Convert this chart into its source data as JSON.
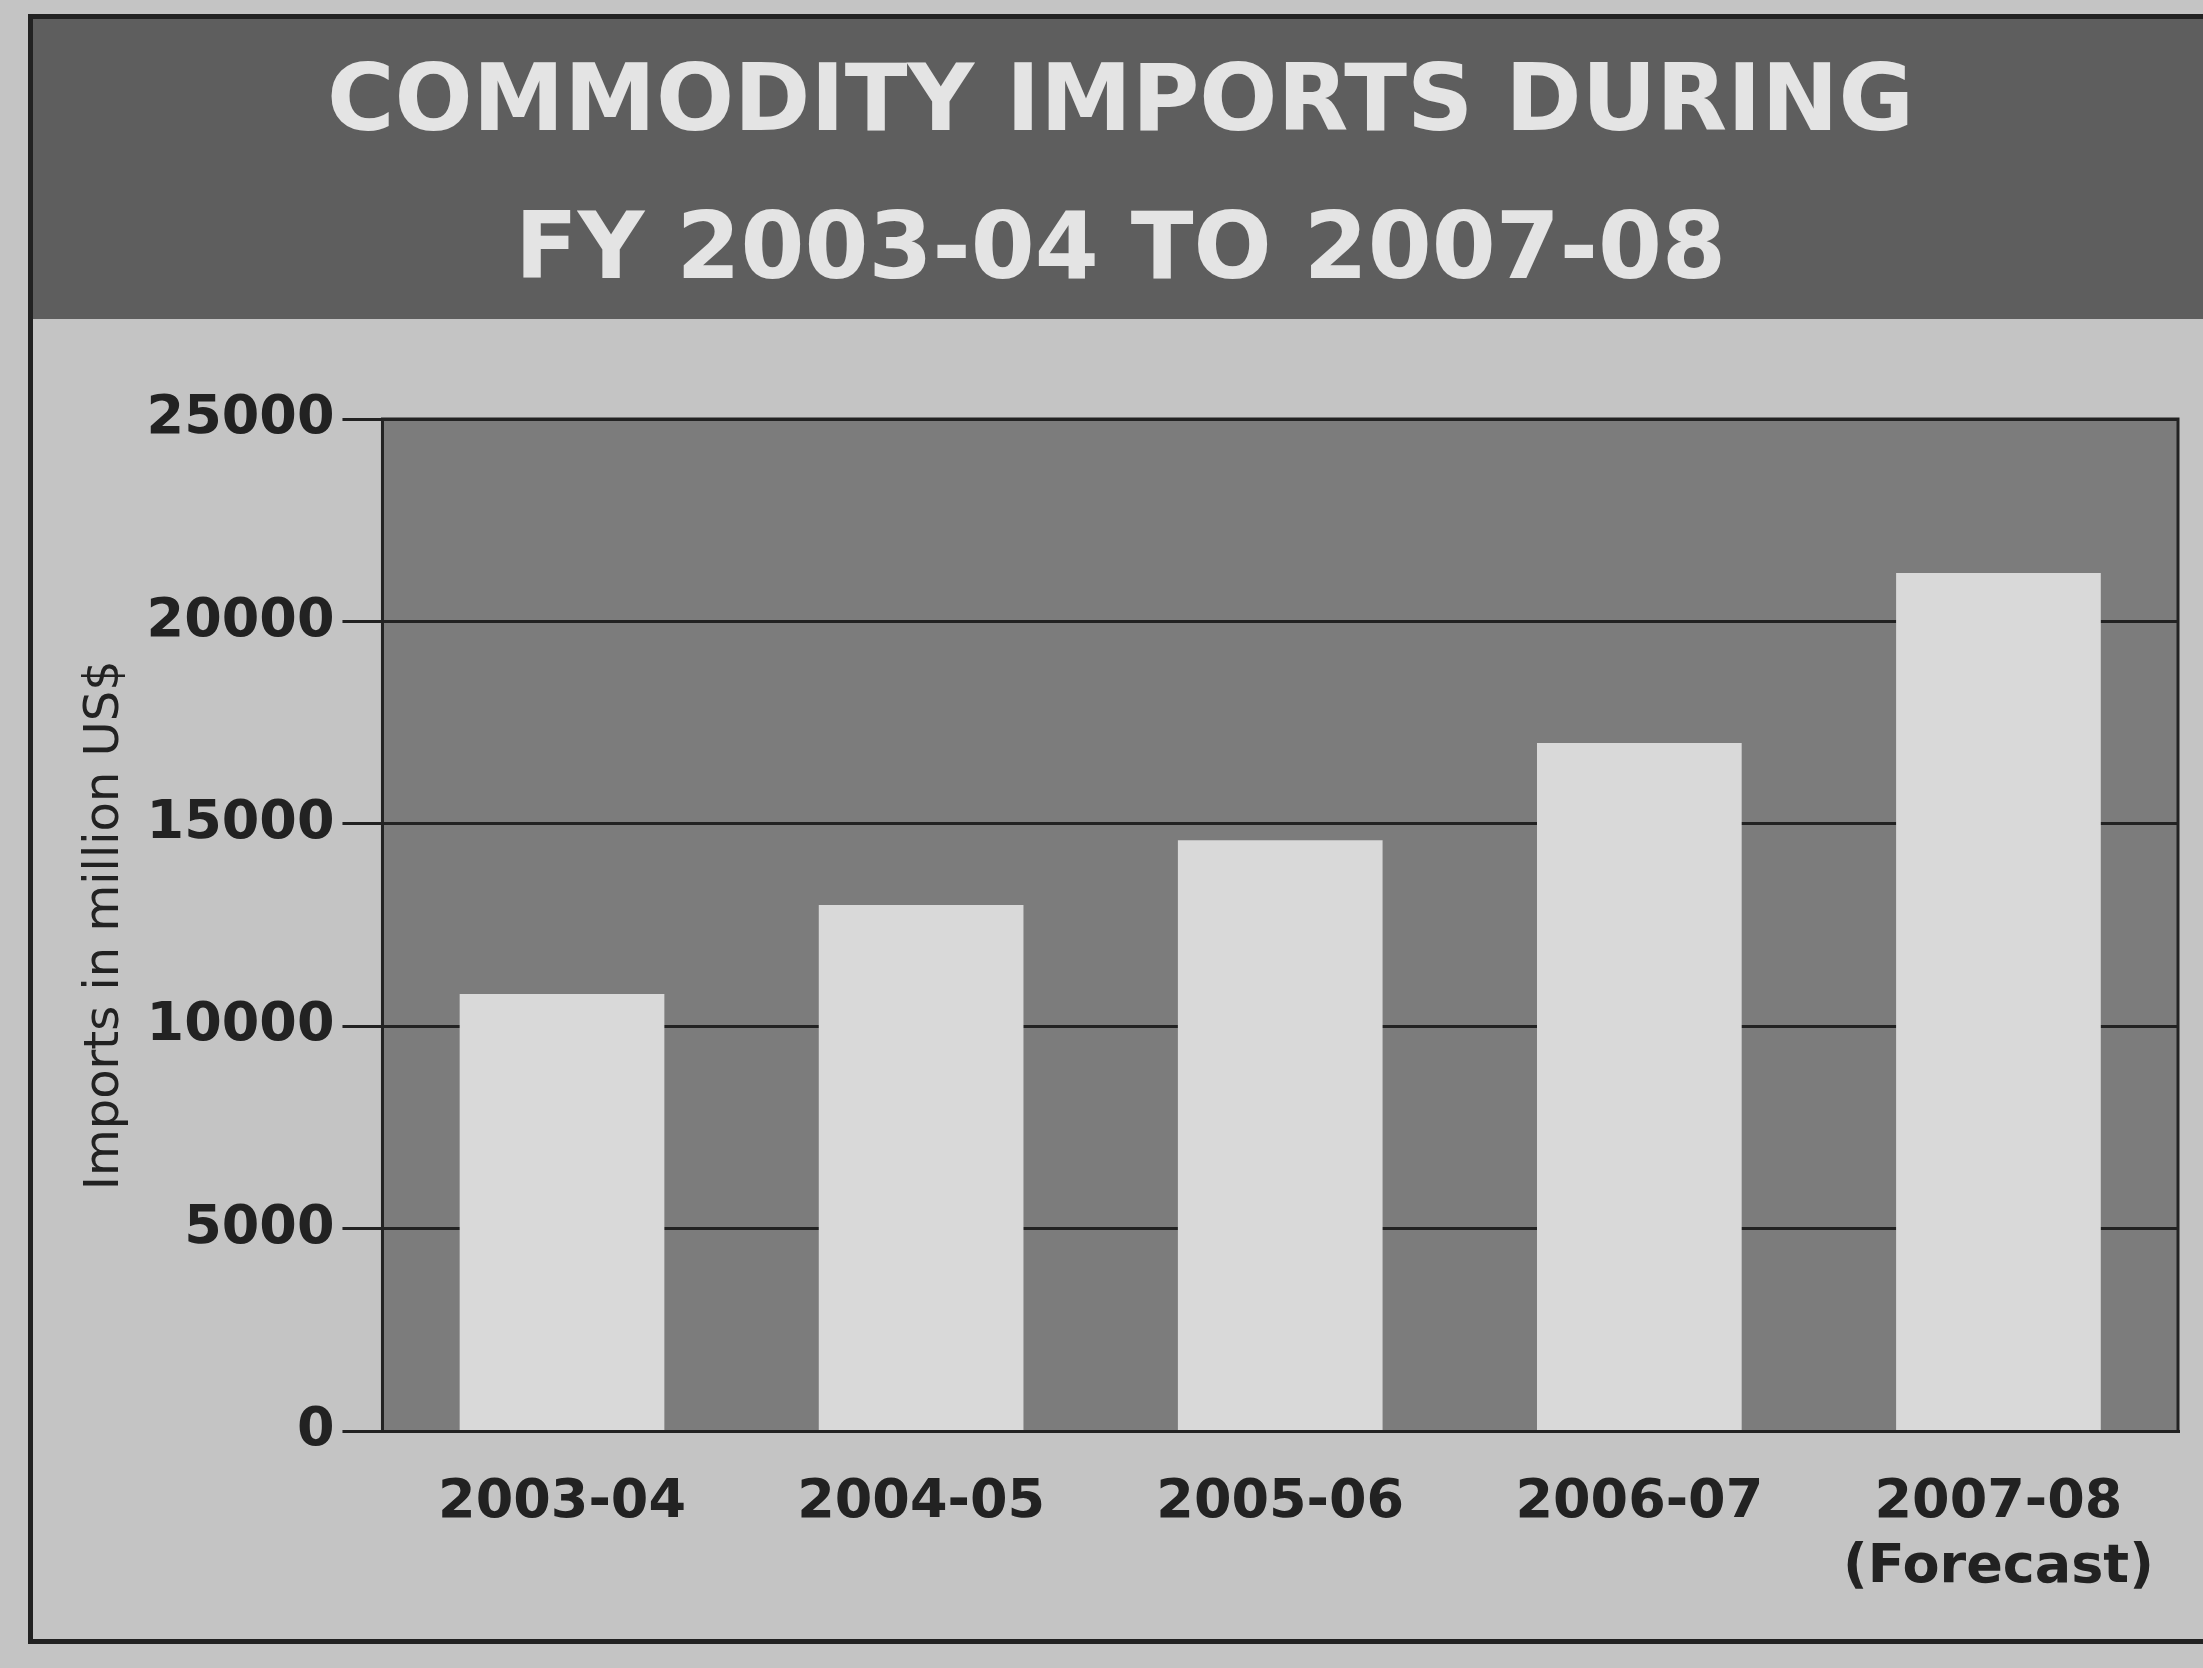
{
  "chart_data": {
    "type": "bar",
    "title": "COMMODITY IMPORTS DURING\nFY 2003-04 TO 2007-08",
    "ylabel": "Imports in million US$",
    "categories": [
      "2003-04",
      "2004-05",
      "2005-06",
      "2006-07",
      "2007-08\n(Forecast)"
    ],
    "values": [
      10800,
      13000,
      14600,
      17000,
      21200
    ],
    "color": "#d9d9d9",
    "ylim": [
      0,
      25000
    ],
    "yticks": [
      0,
      5000,
      10000,
      15000,
      20000,
      25000
    ],
    "grid": "y",
    "legend": false
  }
}
